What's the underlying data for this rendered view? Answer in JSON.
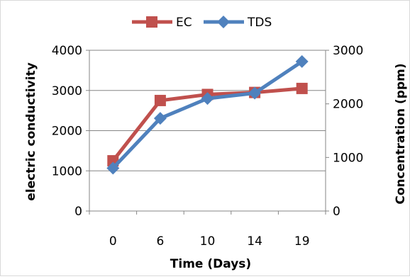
{
  "chart_data": {
    "type": "line",
    "categories": [
      "0",
      "6",
      "10",
      "14",
      "19"
    ],
    "xlabel": "Time (Days)",
    "series": [
      {
        "name": "EC",
        "axis": "left",
        "color": "#c0504d",
        "marker": "square",
        "values": [
          1250,
          2750,
          2900,
          2950,
          3050
        ]
      },
      {
        "name": "TDS",
        "axis": "right",
        "color": "#4f81bd",
        "marker": "diamond",
        "values": [
          800,
          1730,
          2100,
          2200,
          2790
        ]
      }
    ],
    "y_left": {
      "label": "electric conductivity",
      "ylim": [
        0,
        4000
      ],
      "ticks": [
        "0",
        "1000",
        "2000",
        "3000",
        "4000"
      ]
    },
    "y_right": {
      "label": "Concentration (ppm)",
      "ylim": [
        0,
        3000
      ],
      "ticks": [
        "0",
        "1000",
        "2000",
        "3000"
      ]
    },
    "grid": true,
    "legend_position": "top"
  }
}
